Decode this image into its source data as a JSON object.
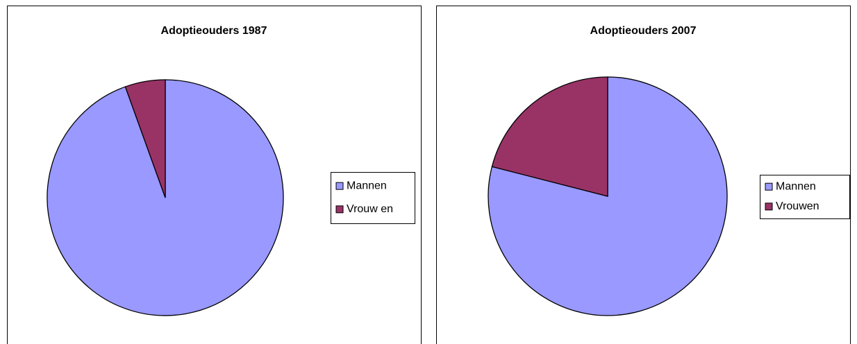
{
  "chart_data": [
    {
      "type": "pie",
      "title": "Adoptieouders 1987",
      "categories": [
        "Mannen",
        "Vrouw en"
      ],
      "values": [
        94.5,
        5.5
      ],
      "colors": [
        "#9999ff",
        "#993366"
      ],
      "legend": "right"
    },
    {
      "type": "pie",
      "title": "Adoptieouders 2007",
      "categories": [
        "Mannen",
        "Vrouwen"
      ],
      "values": [
        79,
        21
      ],
      "colors": [
        "#9999ff",
        "#993366"
      ],
      "legend": "right"
    }
  ]
}
